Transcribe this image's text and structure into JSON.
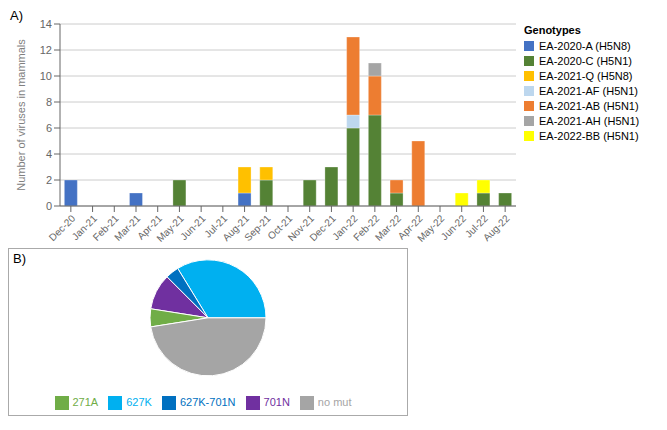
{
  "chart_data": [
    {
      "type": "bar",
      "title": "A)",
      "stacked": true,
      "grid": true,
      "legend": "right",
      "legend_title": "Genotypes",
      "ylabel": "Number of viruses in mammals",
      "categories": [
        "Dec-20",
        "Jan-21",
        "Feb-21",
        "Mar-21",
        "Apr-21",
        "May-21",
        "Jun-21",
        "Jul-21",
        "Aug-21",
        "Sep-21",
        "Oct-21",
        "Nov-21",
        "Dec-21",
        "Jan-22",
        "Feb-22",
        "Mar-22",
        "Apr-22",
        "May-22",
        "Jun-22",
        "Jul-22",
        "Aug-22"
      ],
      "series": [
        {
          "name": "EA-2020-A (H5N8)",
          "color": "#4472C4",
          "values": [
            2,
            0,
            0,
            1,
            0,
            0,
            0,
            0,
            1,
            0,
            0,
            0,
            0,
            0,
            0,
            0,
            0,
            0,
            0,
            0,
            0
          ]
        },
        {
          "name": "EA-2020-C (H5N1)",
          "color": "#548235",
          "values": [
            0,
            0,
            0,
            0,
            0,
            2,
            0,
            0,
            0,
            2,
            0,
            2,
            3,
            6,
            7,
            1,
            0,
            0,
            0,
            1,
            1
          ]
        },
        {
          "name": "EA-2021-Q (H5N8)",
          "color": "#FFC000",
          "values": [
            0,
            0,
            0,
            0,
            0,
            0,
            0,
            0,
            2,
            1,
            0,
            0,
            0,
            0,
            0,
            0,
            0,
            0,
            0,
            0,
            0
          ]
        },
        {
          "name": "EA-2021-AF (H5N1)",
          "color": "#BDD7EE",
          "values": [
            0,
            0,
            0,
            0,
            0,
            0,
            0,
            0,
            0,
            0,
            0,
            0,
            0,
            1,
            0,
            0,
            0,
            0,
            0,
            0,
            0
          ]
        },
        {
          "name": "EA-2021-AB (H5N1)",
          "color": "#ED7D31",
          "values": [
            0,
            0,
            0,
            0,
            0,
            0,
            0,
            0,
            0,
            0,
            0,
            0,
            0,
            6,
            3,
            1,
            5,
            0,
            0,
            0,
            0
          ]
        },
        {
          "name": "EA-2021-AH (H5N1)",
          "color": "#A5A5A5",
          "values": [
            0,
            0,
            0,
            0,
            0,
            0,
            0,
            0,
            0,
            0,
            0,
            0,
            0,
            0,
            1,
            0,
            0,
            0,
            0,
            0,
            0
          ]
        },
        {
          "name": "EA-2022-BB (H5N1)",
          "color": "#FFFF00",
          "values": [
            0,
            0,
            0,
            0,
            0,
            0,
            0,
            0,
            0,
            0,
            0,
            0,
            0,
            0,
            0,
            0,
            0,
            0,
            1,
            1,
            0
          ]
        }
      ],
      "ylim": [
        0,
        14
      ],
      "yticks": [
        0,
        2,
        4,
        6,
        8,
        10,
        12,
        14
      ]
    },
    {
      "type": "pie",
      "title": "B)",
      "legend": "bottom",
      "categories": [
        "627K",
        "627K-701N",
        "701N",
        "271A",
        "no mut"
      ],
      "values": [
        27,
        3,
        8,
        4,
        38
      ],
      "colors": [
        "#00B0F0",
        "#0070C0",
        "#7030A0",
        "#70AD47",
        "#A5A5A5"
      ]
    }
  ]
}
